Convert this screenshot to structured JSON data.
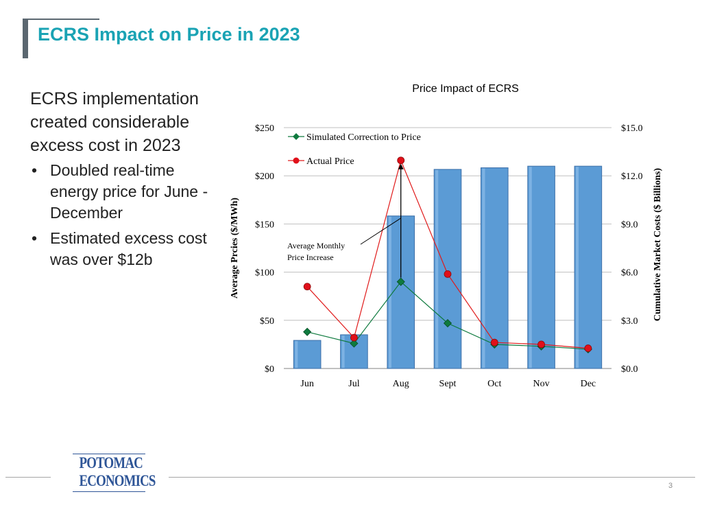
{
  "slide": {
    "title": "ECRS Impact on Price in 2023",
    "lead": "ECRS implementation created considerable excess cost in 2023",
    "bullets": [
      "Doubled real-time energy price for June - December",
      "Estimated excess cost was over $12b"
    ],
    "bullet_glyph": "•",
    "logo_line1": "POTOMAC",
    "logo_line2": "ECONOMICS",
    "page_number": "3"
  },
  "colors": {
    "title": "#1aa3b4",
    "bar": "#5b9bd5",
    "simulated": "#0e7a3e",
    "actual_point": "#e0101a",
    "actual_line": "#e01a1a",
    "logo": "#2e5597"
  },
  "chart_data": {
    "type": "bar+line",
    "title": "Price Impact of ECRS",
    "categories": [
      "Jun",
      "Jul",
      "Aug",
      "Sept",
      "Oct",
      "Nov",
      "Dec"
    ],
    "y_left": {
      "label": "Average Prcies ($/MWh)",
      "range": [
        0,
        250
      ],
      "ticks": [
        0,
        50,
        100,
        150,
        200,
        250
      ],
      "tick_labels": [
        "$0",
        "$50",
        "$100",
        "$150",
        "$200",
        "$250"
      ]
    },
    "y_right": {
      "label": "Cumulative Market Costs ($ Billions)",
      "range": [
        0,
        15
      ],
      "ticks": [
        0,
        3,
        6,
        9,
        12,
        15
      ],
      "tick_labels": [
        "$0.0",
        "$3.0",
        "$6.0",
        "$9.0",
        "$12.0",
        "$15.0"
      ]
    },
    "grid": true,
    "series": [
      {
        "name": "Cumulative Market Costs",
        "type": "bar",
        "axis": "right",
        "values": [
          1.75,
          2.1,
          9.5,
          12.4,
          12.5,
          12.6,
          12.6
        ]
      },
      {
        "name": "Simulated Correction to Price",
        "type": "line",
        "axis": "left",
        "marker": "diamond",
        "values": [
          38,
          26,
          90,
          47,
          25,
          23,
          20
        ]
      },
      {
        "name": "Actual Price",
        "type": "line",
        "axis": "left",
        "marker": "circle",
        "values": [
          85,
          32,
          216,
          98,
          27,
          25,
          21
        ]
      }
    ],
    "legend_position": "top-left",
    "annotation": {
      "text_line1": "Average Monthly",
      "text_line2": "Price Increase",
      "category": "Aug",
      "from_value": 90,
      "to_value": 216
    }
  }
}
